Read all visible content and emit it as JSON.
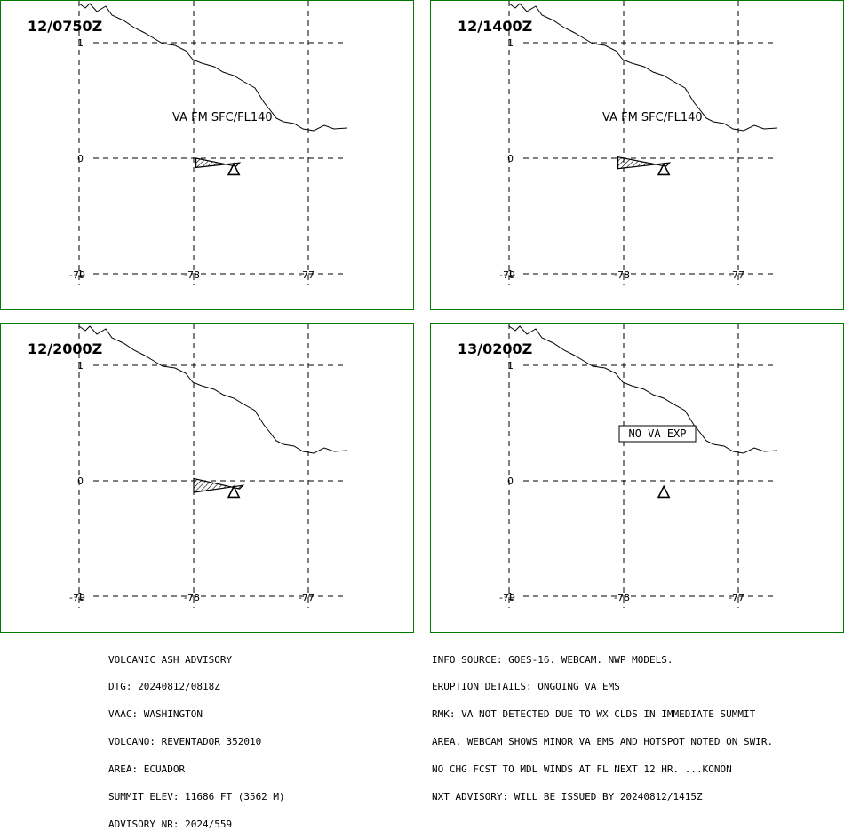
{
  "panels": [
    {
      "time": "12/0750Z",
      "label": "VA FM SFC/FL140",
      "label_boxed": false,
      "ash_polygon": [
        [
          -77.98,
          0.0
        ],
        [
          -77.63,
          -0.07
        ],
        [
          -77.6,
          -0.04
        ],
        [
          -77.98,
          -0.08
        ]
      ]
    },
    {
      "time": "12/1400Z",
      "label": "VA FM SFC/FL140",
      "label_boxed": false,
      "ash_polygon": [
        [
          -78.05,
          0.01
        ],
        [
          -77.63,
          -0.07
        ],
        [
          -77.6,
          -0.04
        ],
        [
          -78.05,
          -0.09
        ]
      ]
    },
    {
      "time": "12/2000Z",
      "label": "",
      "label_boxed": false,
      "ash_polygon": [
        [
          -78.0,
          0.02
        ],
        [
          -77.6,
          -0.07
        ],
        [
          -77.57,
          -0.04
        ],
        [
          -78.0,
          -0.1
        ]
      ]
    },
    {
      "time": "13/0200Z",
      "label": "NO VA EXP",
      "label_boxed": true,
      "ash_polygon": []
    }
  ],
  "axes": {
    "x_ticks": [
      -79,
      -78,
      -77
    ],
    "x_labels": [
      "-79",
      "-78",
      "-77"
    ],
    "y_ticks": [
      1,
      0,
      -1
    ],
    "y_labels": [
      "1",
      "0",
      "-1"
    ]
  },
  "volcano": {
    "name": "REVENTADOR",
    "lon": -77.65,
    "lat": -0.08
  },
  "advisory_left": [
    "VOLCANIC ASH ADVISORY",
    "DTG: 20240812/0818Z",
    "VAAC: WASHINGTON",
    "VOLCANO: REVENTADOR 352010",
    "AREA: ECUADOR",
    "SUMMIT ELEV: 11686 FT (3562 M)",
    "ADVISORY NR: 2024/559"
  ],
  "advisory_right": [
    "INFO SOURCE: GOES-16. WEBCAM. NWP MODELS.",
    "ERUPTION DETAILS: ONGOING VA EMS",
    "RMK: VA NOT DETECTED DUE TO WX CLDS IN IMMEDIATE SUMMIT",
    "AREA. WEBCAM SHOWS MINOR VA EMS AND HOTSPOT NOTED ON SWIR.",
    "NO CHG FCST TO MDL WINDS AT FL NEXT 12 HR. ...KONON",
    "NXT ADVISORY: WILL BE ISSUED BY 20240812/1415Z"
  ],
  "colors": {
    "panel_border": "#007a00",
    "ink": "#000000"
  }
}
